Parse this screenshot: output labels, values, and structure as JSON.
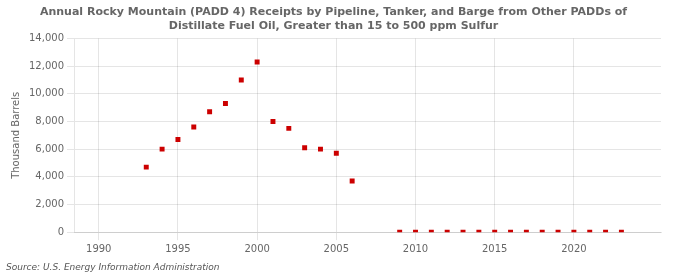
{
  "chart_data": {
    "type": "scatter",
    "title": "Annual Rocky Mountain (PADD 4) Receipts by Pipeline, Tanker, and Barge from Other PADDs of\nDistillate Fuel Oil, Greater than 15 to 500 ppm Sulfur",
    "ylabel": "Thousand Barrels",
    "annotations": [
      "Source: U.S. Energy Information Administration"
    ],
    "x": [
      1993,
      1994,
      1995,
      1996,
      1997,
      1998,
      1999,
      2000,
      2001,
      2002,
      2003,
      2004,
      2005,
      2006,
      2009,
      2010,
      2011,
      2012,
      2013,
      2014,
      2015,
      2016,
      2017,
      2018,
      2019,
      2020,
      2021,
      2022,
      2023
    ],
    "values": [
      4700,
      6000,
      6700,
      7600,
      8700,
      9300,
      11000,
      12300,
      8000,
      7500,
      6100,
      6000,
      5700,
      3700,
      0,
      0,
      0,
      0,
      0,
      0,
      0,
      0,
      0,
      0,
      0,
      0,
      0,
      0,
      0
    ],
    "color": "#cc0000",
    "marker": "square",
    "xlim": [
      1988.5,
      2025.5
    ],
    "xticks": [
      1990,
      1995,
      2000,
      2005,
      2010,
      2015,
      2020
    ],
    "ylim": [
      0,
      14000
    ],
    "yticks": [
      0,
      {
        "value": 2000,
        "label": "2,000"
      },
      {
        "value": 4000,
        "label": "4,000"
      },
      {
        "value": 6000,
        "label": "6,000"
      },
      {
        "value": 8000,
        "label": "8,000"
      },
      {
        "value": 10000,
        "label": "10,000"
      },
      {
        "value": 12000,
        "label": "12,000"
      },
      {
        "value": 14000,
        "label": "14,000"
      }
    ],
    "grid": true
  }
}
